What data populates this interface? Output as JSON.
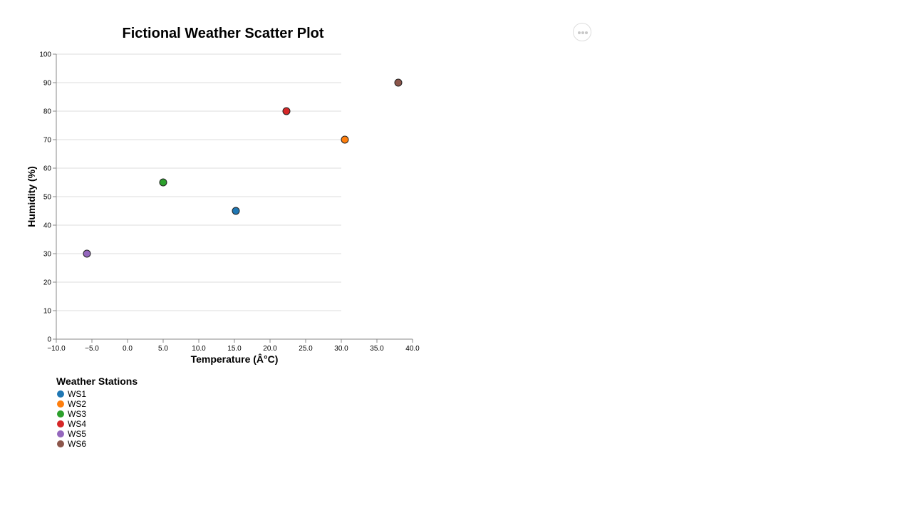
{
  "menu": {
    "icon": "ellipsis-icon"
  },
  "chart_data": {
    "type": "scatter",
    "title": "Fictional Weather Scatter Plot",
    "xlabel": "Temperature (Â°C)",
    "ylabel": "Humidity (%)",
    "xlim": [
      -10,
      40
    ],
    "ylim": [
      0,
      100
    ],
    "x_ticks": [
      "−10.0",
      "−5.0",
      "0.0",
      "5.0",
      "10.0",
      "15.0",
      "20.0",
      "25.0",
      "30.0",
      "35.0",
      "40.0"
    ],
    "y_ticks": [
      "0",
      "10",
      "20",
      "30",
      "40",
      "50",
      "60",
      "70",
      "80",
      "90",
      "100"
    ],
    "grid": true,
    "legend_title": "Weather Stations",
    "legend_placement": "bottom-left",
    "series": [
      {
        "name": "WS1",
        "color": "#1f77b4",
        "x": 15.2,
        "y": 45
      },
      {
        "name": "WS2",
        "color": "#ff7f0e",
        "x": 30.5,
        "y": 70
      },
      {
        "name": "WS3",
        "color": "#2ca02c",
        "x": 5.0,
        "y": 55
      },
      {
        "name": "WS4",
        "color": "#d62728",
        "x": 22.3,
        "y": 80
      },
      {
        "name": "WS5",
        "color": "#9467bd",
        "x": -5.7,
        "y": 30
      },
      {
        "name": "WS6",
        "color": "#8c564b",
        "x": 38.0,
        "y": 90
      }
    ]
  }
}
